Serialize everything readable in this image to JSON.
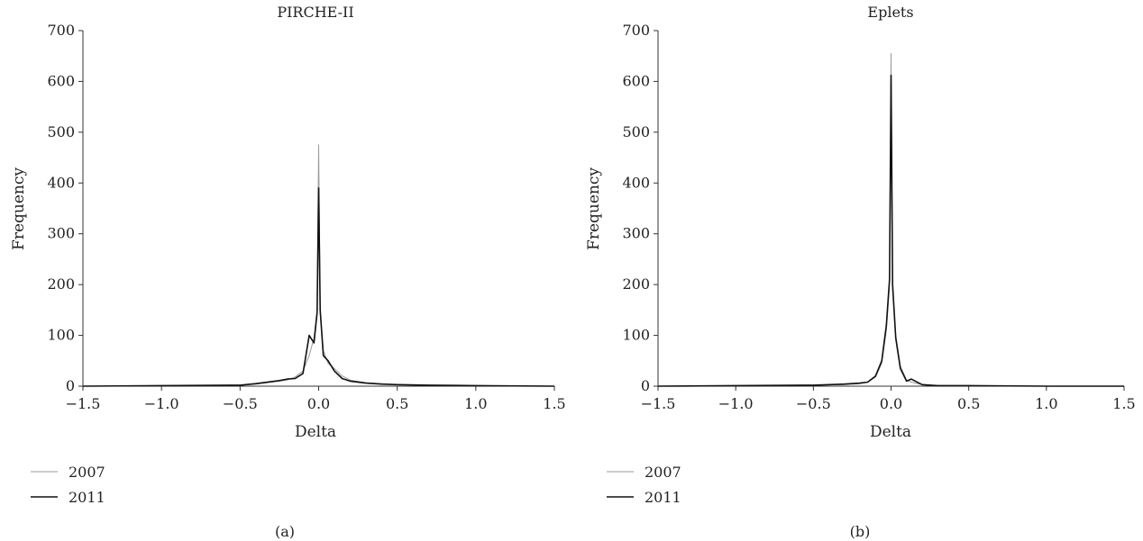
{
  "figure": {
    "captions": [
      "(a)",
      "(b)"
    ]
  },
  "chart_data": [
    {
      "type": "line",
      "title": "PIRCHE-II",
      "xlabel": "Delta",
      "ylabel": "Frequency",
      "xlim": [
        -1.5,
        1.5
      ],
      "ylim": [
        0,
        700
      ],
      "xticks": [
        "−1.5",
        "−1.0",
        "−0.5",
        "0.0",
        "0.5",
        "1.0",
        "1.5"
      ],
      "xtick_values": [
        -1.5,
        -1.0,
        -0.5,
        0.0,
        0.5,
        1.0,
        1.5
      ],
      "yticks": [
        "0",
        "100",
        "200",
        "300",
        "400",
        "500",
        "600",
        "700"
      ],
      "ytick_values": [
        0,
        100,
        200,
        300,
        400,
        500,
        600,
        700
      ],
      "grid": false,
      "legend_position": "bottom-left",
      "series": [
        {
          "name": "2007",
          "color": "#9a9a9a",
          "x": [
            -1.5,
            -1.0,
            -0.5,
            -0.4,
            -0.3,
            -0.25,
            -0.2,
            -0.15,
            -0.1,
            -0.06,
            -0.03,
            -0.01,
            0.0,
            0.01,
            0.03,
            0.06,
            0.1,
            0.15,
            0.2,
            0.3,
            0.4,
            0.5,
            0.7,
            1.0,
            1.5
          ],
          "y": [
            0,
            1,
            2,
            4,
            8,
            10,
            12,
            18,
            30,
            60,
            95,
            150,
            475,
            145,
            70,
            45,
            35,
            20,
            12,
            7,
            5,
            3,
            2,
            1,
            0
          ]
        },
        {
          "name": "2011",
          "color": "#111111",
          "x": [
            -1.5,
            -1.0,
            -0.5,
            -0.4,
            -0.3,
            -0.25,
            -0.2,
            -0.15,
            -0.1,
            -0.06,
            -0.03,
            -0.01,
            0.0,
            0.01,
            0.03,
            0.06,
            0.1,
            0.15,
            0.2,
            0.3,
            0.4,
            0.5,
            0.7,
            1.0,
            1.5
          ],
          "y": [
            0,
            1,
            2,
            5,
            9,
            11,
            14,
            15,
            25,
            100,
            85,
            145,
            390,
            150,
            60,
            50,
            30,
            15,
            10,
            6,
            4,
            3,
            2,
            1,
            0
          ]
        }
      ]
    },
    {
      "type": "line",
      "title": "Eplets",
      "xlabel": "Delta",
      "ylabel": "Frequency",
      "xlim": [
        -1.5,
        1.5
      ],
      "ylim": [
        0,
        700
      ],
      "xticks": [
        "−1.5",
        "−1.0",
        "−0.5",
        "0.0",
        "0.5",
        "1.0",
        "1.5"
      ],
      "xtick_values": [
        -1.5,
        -1.0,
        -0.5,
        0.0,
        0.5,
        1.0,
        1.5
      ],
      "yticks": [
        "0",
        "100",
        "200",
        "300",
        "400",
        "500",
        "600",
        "700"
      ],
      "ytick_values": [
        0,
        100,
        200,
        300,
        400,
        500,
        600,
        700
      ],
      "grid": false,
      "legend_position": "bottom-left",
      "series": [
        {
          "name": "2007",
          "color": "#9a9a9a",
          "x": [
            -1.5,
            -1.0,
            -0.5,
            -0.3,
            -0.2,
            -0.15,
            -0.1,
            -0.06,
            -0.03,
            -0.01,
            0.0,
            0.01,
            0.03,
            0.06,
            0.1,
            0.13,
            0.2,
            0.3,
            0.5,
            1.0,
            1.5
          ],
          "y": [
            0,
            1,
            2,
            3,
            5,
            8,
            18,
            45,
            110,
            200,
            655,
            190,
            100,
            40,
            12,
            8,
            3,
            1,
            1,
            0,
            0
          ]
        },
        {
          "name": "2011",
          "color": "#111111",
          "x": [
            -1.5,
            -1.0,
            -0.5,
            -0.3,
            -0.2,
            -0.15,
            -0.1,
            -0.06,
            -0.03,
            -0.01,
            0.0,
            0.01,
            0.03,
            0.06,
            0.1,
            0.13,
            0.2,
            0.3,
            0.5,
            1.0,
            1.5
          ],
          "y": [
            0,
            1,
            2,
            4,
            6,
            8,
            20,
            50,
            120,
            210,
            612,
            200,
            95,
            35,
            10,
            14,
            3,
            1,
            1,
            0,
            0
          ]
        }
      ]
    }
  ]
}
